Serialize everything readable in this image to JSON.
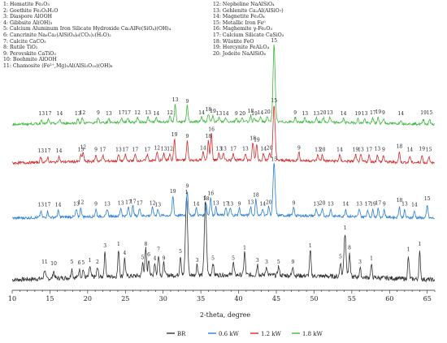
{
  "phase_legend": {
    "left": [
      "1: Hematite Fe₂O₃",
      "2: Goethite Fe₂O₃H₂O",
      "3: Diaspore AlOOH",
      "4: Gibbsite Al(OH)₃",
      "5: Calcium Aluminum Iron Silicate Hydroxide Ca₂AlFe(SiO₄)(OH)₄",
      "6: Cancrinite Na₆Ca₂(AlSiO₄)₆(CO₃)₂(H₂O)₂",
      "7: Calcite CaCO₃",
      "8: Rutile TiO₂",
      "9: Perovskite CaTiO₃",
      "10: Boehmite AlOOH",
      "11: Chamosite (Fe²⁺,Mg)₅Al(AlSi₃O₁₀)(OH)₈"
    ],
    "right": [
      "12: Nepheline NaAlSiO₄",
      "13: Gehlenite Ca₂Al(AlSiO₇)",
      "14: Magnetite Fe₃O₄",
      "15: Metallic Iron Fe⁰",
      "16: Maghemite γ-Fe₂O₃",
      "17: Calcium Silicate CaSiO₃",
      "18: Wüstite FeO",
      "19: Hercynite FeAl₂O₄",
      "20: Jedeite NaAlSiO₆"
    ]
  },
  "chart_data": {
    "type": "line",
    "title": "",
    "xlabel": "2-theta, degree",
    "ylabel": "",
    "xlim": [
      10,
      66
    ],
    "x_ticks": [
      10,
      15,
      20,
      25,
      30,
      35,
      40,
      45,
      50,
      55,
      60,
      65
    ],
    "grid": false,
    "legend_position": "bottom",
    "series": [
      {
        "name": "BR",
        "color": "#333333",
        "baseline": 0,
        "peaks": [
          {
            "x": 14.3,
            "h": 0.1,
            "label": "11"
          },
          {
            "x": 15.5,
            "h": 0.08,
            "label": "10"
          },
          {
            "x": 17.9,
            "h": 0.1,
            "label": "5"
          },
          {
            "x": 18.9,
            "h": 0.09,
            "label": "6"
          },
          {
            "x": 19.4,
            "h": 0.09,
            "label": "5"
          },
          {
            "x": 20.3,
            "h": 0.12,
            "label": "1"
          },
          {
            "x": 21.3,
            "h": 0.1,
            "label": "2"
          },
          {
            "x": 22.3,
            "h": 0.28,
            "label": "3"
          },
          {
            "x": 24.1,
            "h": 0.3,
            "label": "1"
          },
          {
            "x": 24.9,
            "h": 0.2,
            "label": "4"
          },
          {
            "x": 27.3,
            "h": 0.15,
            "label": "5"
          },
          {
            "x": 27.7,
            "h": 0.3,
            "label": "8"
          },
          {
            "x": 28.1,
            "h": 0.18,
            "label": "6"
          },
          {
            "x": 28.9,
            "h": 0.14,
            "label": "4"
          },
          {
            "x": 29.4,
            "h": 0.24,
            "label": "7"
          },
          {
            "x": 30.1,
            "h": 0.14,
            "label": "9"
          },
          {
            "x": 32.3,
            "h": 0.22,
            "label": "5"
          },
          {
            "x": 33.1,
            "h": 0.88,
            "label": "1"
          },
          {
            "x": 34.5,
            "h": 0.12,
            "label": "3"
          },
          {
            "x": 35.6,
            "h": 0.82,
            "label": "1"
          },
          {
            "x": 36.6,
            "h": 0.14,
            "label": "5"
          },
          {
            "x": 39.3,
            "h": 0.14,
            "label": "5"
          },
          {
            "x": 40.8,
            "h": 0.26,
            "label": "1"
          },
          {
            "x": 42.5,
            "h": 0.12,
            "label": "3"
          },
          {
            "x": 43.7,
            "h": 0.1,
            "label": "3"
          },
          {
            "x": 45.3,
            "h": 0.1,
            "label": "5"
          },
          {
            "x": 47.2,
            "h": 0.1,
            "label": "9"
          },
          {
            "x": 49.5,
            "h": 0.28,
            "label": "1"
          },
          {
            "x": 53.5,
            "h": 0.16,
            "label": "5"
          },
          {
            "x": 54.1,
            "h": 0.48,
            "label": "1"
          },
          {
            "x": 54.7,
            "h": 0.26,
            "label": "8"
          },
          {
            "x": 56.1,
            "h": 0.1,
            "label": "3"
          },
          {
            "x": 57.6,
            "h": 0.14,
            "label": "1"
          },
          {
            "x": 62.5,
            "h": 0.24,
            "label": "1"
          },
          {
            "x": 64.0,
            "h": 0.3,
            "label": "1"
          }
        ]
      },
      {
        "name": "0.6 kW",
        "color": "#2a7fd4",
        "baseline": 1,
        "peaks": [
          {
            "x": 13.8,
            "h": 0.07,
            "label": "13"
          },
          {
            "x": 14.7,
            "h": 0.07,
            "label": "17"
          },
          {
            "x": 16.1,
            "h": 0.07,
            "label": "14"
          },
          {
            "x": 18.5,
            "h": 0.08,
            "label": "13"
          },
          {
            "x": 19.1,
            "h": 0.1,
            "label": "12"
          },
          {
            "x": 21.1,
            "h": 0.08,
            "label": "9"
          },
          {
            "x": 22.6,
            "h": 0.08,
            "label": "13"
          },
          {
            "x": 24.4,
            "h": 0.09,
            "label": "13"
          },
          {
            "x": 25.4,
            "h": 0.1,
            "label": "17"
          },
          {
            "x": 26.0,
            "h": 0.11,
            "label": "17"
          },
          {
            "x": 26.9,
            "h": 0.09,
            "label": "17"
          },
          {
            "x": 28.6,
            "h": 0.09,
            "label": "12"
          },
          {
            "x": 29.3,
            "h": 0.07,
            "label": "13"
          },
          {
            "x": 31.3,
            "h": 0.22,
            "label": "19"
          },
          {
            "x": 33.2,
            "h": 0.28,
            "label": "9"
          },
          {
            "x": 34.4,
            "h": 0.08,
            "label": "14"
          },
          {
            "x": 35.7,
            "h": 0.14,
            "label": "18"
          },
          {
            "x": 36.3,
            "h": 0.2,
            "label": "16"
          },
          {
            "x": 37.0,
            "h": 0.09,
            "label": "13"
          },
          {
            "x": 38.3,
            "h": 0.08,
            "label": "17"
          },
          {
            "x": 38.9,
            "h": 0.08,
            "label": "13"
          },
          {
            "x": 40.1,
            "h": 0.08,
            "label": "9"
          },
          {
            "x": 41.6,
            "h": 0.1,
            "label": "13"
          },
          {
            "x": 42.3,
            "h": 0.18,
            "label": "18"
          },
          {
            "x": 43.2,
            "h": 0.08,
            "label": "14"
          },
          {
            "x": 44.0,
            "h": 0.1,
            "label": "20"
          },
          {
            "x": 44.7,
            "h": 0.58,
            "label": "15"
          },
          {
            "x": 47.3,
            "h": 0.09,
            "label": "9"
          },
          {
            "x": 50.3,
            "h": 0.08,
            "label": "13"
          },
          {
            "x": 51.1,
            "h": 0.09,
            "label": "20"
          },
          {
            "x": 52.2,
            "h": 0.08,
            "label": "13"
          },
          {
            "x": 54.2,
            "h": 0.08,
            "label": "14"
          },
          {
            "x": 56.0,
            "h": 0.08,
            "label": "13"
          },
          {
            "x": 57.1,
            "h": 0.08,
            "label": "17"
          },
          {
            "x": 57.8,
            "h": 0.08,
            "label": "19"
          },
          {
            "x": 58.5,
            "h": 0.09,
            "label": "17"
          },
          {
            "x": 59.3,
            "h": 0.08,
            "label": "9"
          },
          {
            "x": 61.3,
            "h": 0.12,
            "label": "18"
          },
          {
            "x": 62.0,
            "h": 0.08,
            "label": "13"
          },
          {
            "x": 63.3,
            "h": 0.07,
            "label": "14"
          },
          {
            "x": 65.0,
            "h": 0.14,
            "label": "15"
          }
        ]
      },
      {
        "name": "1.2 kW",
        "color": "#d42a2a",
        "baseline": 2,
        "peaks": [
          {
            "x": 13.8,
            "h": 0.06,
            "label": "13"
          },
          {
            "x": 14.7,
            "h": 0.06,
            "label": "17"
          },
          {
            "x": 16.2,
            "h": 0.06,
            "label": "14"
          },
          {
            "x": 19.4,
            "h": 0.1,
            "label": "12"
          },
          {
            "x": 19.1,
            "h": 0.07,
            "label": "13"
          },
          {
            "x": 21.1,
            "h": 0.07,
            "label": "9"
          },
          {
            "x": 22.0,
            "h": 0.07,
            "label": "17"
          },
          {
            "x": 24.1,
            "h": 0.07,
            "label": "13"
          },
          {
            "x": 25.0,
            "h": 0.07,
            "label": "17"
          },
          {
            "x": 26.3,
            "h": 0.07,
            "label": "17"
          },
          {
            "x": 27.9,
            "h": 0.07,
            "label": "17"
          },
          {
            "x": 29.2,
            "h": 0.09,
            "label": "12"
          },
          {
            "x": 30.1,
            "h": 0.08,
            "label": "13"
          },
          {
            "x": 30.9,
            "h": 0.08,
            "label": "12"
          },
          {
            "x": 31.5,
            "h": 0.24,
            "label": "19"
          },
          {
            "x": 33.2,
            "h": 0.22,
            "label": "9"
          },
          {
            "x": 35.3,
            "h": 0.09,
            "label": "14"
          },
          {
            "x": 36.0,
            "h": 0.22,
            "label": "18"
          },
          {
            "x": 36.4,
            "h": 0.3,
            "label": "16"
          },
          {
            "x": 37.4,
            "h": 0.08,
            "label": "13"
          },
          {
            "x": 38.0,
            "h": 0.08,
            "label": "13"
          },
          {
            "x": 39.3,
            "h": 0.08,
            "label": "17"
          },
          {
            "x": 40.9,
            "h": 0.08,
            "label": "13"
          },
          {
            "x": 41.9,
            "h": 0.2,
            "label": "18"
          },
          {
            "x": 42.4,
            "h": 0.18,
            "label": "19"
          },
          {
            "x": 43.3,
            "h": 0.08,
            "label": "14"
          },
          {
            "x": 44.1,
            "h": 0.09,
            "label": "20"
          },
          {
            "x": 44.7,
            "h": 0.62,
            "label": "15"
          },
          {
            "x": 48.0,
            "h": 0.09,
            "label": "9"
          },
          {
            "x": 50.5,
            "h": 0.07,
            "label": "13"
          },
          {
            "x": 51.1,
            "h": 0.07,
            "label": "20"
          },
          {
            "x": 53.4,
            "h": 0.07,
            "label": "14"
          },
          {
            "x": 55.5,
            "h": 0.07,
            "label": "19"
          },
          {
            "x": 56.2,
            "h": 0.07,
            "label": "13"
          },
          {
            "x": 57.3,
            "h": 0.07,
            "label": "17"
          },
          {
            "x": 58.4,
            "h": 0.08,
            "label": "13"
          },
          {
            "x": 59.2,
            "h": 0.07,
            "label": "9"
          },
          {
            "x": 61.3,
            "h": 0.11,
            "label": "18"
          },
          {
            "x": 62.7,
            "h": 0.07,
            "label": "14"
          },
          {
            "x": 64.3,
            "h": 0.08,
            "label": "19"
          },
          {
            "x": 65.2,
            "h": 0.07,
            "label": "15"
          }
        ]
      },
      {
        "name": "1.8 kW",
        "color": "#3db83d",
        "baseline": 3,
        "peaks": [
          {
            "x": 13.9,
            "h": 0.05,
            "label": "13"
          },
          {
            "x": 14.8,
            "h": 0.05,
            "label": "17"
          },
          {
            "x": 16.3,
            "h": 0.05,
            "label": "14"
          },
          {
            "x": 19.3,
            "h": 0.06,
            "label": "12"
          },
          {
            "x": 18.7,
            "h": 0.05,
            "label": "13"
          },
          {
            "x": 21.4,
            "h": 0.06,
            "label": "9"
          },
          {
            "x": 22.8,
            "h": 0.05,
            "label": "13"
          },
          {
            "x": 24.5,
            "h": 0.06,
            "label": "17"
          },
          {
            "x": 25.3,
            "h": 0.06,
            "label": "17"
          },
          {
            "x": 26.6,
            "h": 0.06,
            "label": "12"
          },
          {
            "x": 28.0,
            "h": 0.06,
            "label": "13"
          },
          {
            "x": 29.1,
            "h": 0.05,
            "label": "14"
          },
          {
            "x": 30.9,
            "h": 0.06,
            "label": "12"
          },
          {
            "x": 31.6,
            "h": 0.22,
            "label": "13"
          },
          {
            "x": 33.2,
            "h": 0.2,
            "label": "9"
          },
          {
            "x": 35.1,
            "h": 0.06,
            "label": "14"
          },
          {
            "x": 36.0,
            "h": 0.1,
            "label": "18"
          },
          {
            "x": 36.6,
            "h": 0.08,
            "label": "19"
          },
          {
            "x": 37.4,
            "h": 0.05,
            "label": "13"
          },
          {
            "x": 38.3,
            "h": 0.05,
            "label": "14"
          },
          {
            "x": 39.7,
            "h": 0.05,
            "label": "9"
          },
          {
            "x": 40.5,
            "h": 0.05,
            "label": "20"
          },
          {
            "x": 41.6,
            "h": 0.08,
            "label": "18"
          },
          {
            "x": 42.1,
            "h": 0.05,
            "label": "19"
          },
          {
            "x": 42.9,
            "h": 0.06,
            "label": "14"
          },
          {
            "x": 43.8,
            "h": 0.07,
            "label": "20"
          },
          {
            "x": 44.7,
            "h": 0.95,
            "label": "15"
          },
          {
            "x": 47.5,
            "h": 0.06,
            "label": "9"
          },
          {
            "x": 48.8,
            "h": 0.05,
            "label": "13"
          },
          {
            "x": 50.3,
            "h": 0.05,
            "label": "13"
          },
          {
            "x": 51.2,
            "h": 0.06,
            "label": "20"
          },
          {
            "x": 52.1,
            "h": 0.06,
            "label": "13"
          },
          {
            "x": 53.9,
            "h": 0.05,
            "label": "14"
          },
          {
            "x": 55.8,
            "h": 0.05,
            "label": "19"
          },
          {
            "x": 56.7,
            "h": 0.05,
            "label": "13"
          },
          {
            "x": 57.8,
            "h": 0.06,
            "label": "17"
          },
          {
            "x": 58.5,
            "h": 0.07,
            "label": "19"
          },
          {
            "x": 59.2,
            "h": 0.06,
            "label": "9"
          },
          {
            "x": 61.5,
            "h": 0.05,
            "label": "14"
          },
          {
            "x": 64.5,
            "h": 0.06,
            "label": "19"
          },
          {
            "x": 65.3,
            "h": 0.06,
            "label": "15"
          }
        ]
      }
    ]
  }
}
